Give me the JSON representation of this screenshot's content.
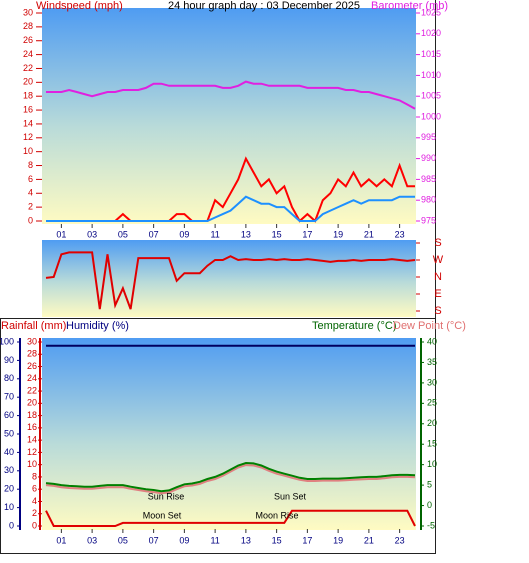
{
  "chart_data": [
    {
      "type": "line",
      "title": "24 hour graph day : 03 December 2025",
      "y_label": "Windspeed (mph)",
      "y2_label": "Barometer (mb)",
      "x": [
        0,
        0.5,
        1,
        1.5,
        2,
        2.5,
        3,
        3.5,
        4,
        4.5,
        5,
        5.5,
        6,
        6.5,
        7,
        7.5,
        8,
        8.5,
        9,
        9.5,
        10,
        10.5,
        11,
        11.5,
        12,
        12.5,
        13,
        13.5,
        14,
        14.5,
        15,
        15.5,
        16,
        16.5,
        17,
        17.5,
        18,
        18.5,
        19,
        19.5,
        20,
        20.5,
        21,
        21.5,
        22,
        22.5,
        23,
        23.5,
        24
      ],
      "xlim": [
        0,
        24
      ],
      "xticks": [
        {
          "value": 1,
          "label": "01"
        },
        {
          "value": 3,
          "label": "03"
        },
        {
          "value": 5,
          "label": "05"
        },
        {
          "value": 7,
          "label": "07"
        },
        {
          "value": 9,
          "label": "09"
        },
        {
          "value": 11,
          "label": "11"
        },
        {
          "value": 13,
          "label": "13"
        },
        {
          "value": 15,
          "label": "15"
        },
        {
          "value": 17,
          "label": "17"
        },
        {
          "value": 19,
          "label": "19"
        },
        {
          "value": 21,
          "label": "21"
        },
        {
          "value": 23,
          "label": "23"
        }
      ],
      "ylim": [
        0,
        30
      ],
      "yticks": [
        0,
        2,
        4,
        6,
        8,
        10,
        12,
        14,
        16,
        18,
        20,
        22,
        24,
        26,
        28,
        30
      ],
      "y2lim": [
        975,
        1025
      ],
      "y2ticks": [
        975,
        980,
        985,
        990,
        995,
        1000,
        1005,
        1010,
        1015,
        1020,
        1025
      ],
      "series": [
        {
          "color": "#ff0000",
          "values": [
            0,
            0,
            0,
            0,
            0,
            0,
            0,
            0,
            0,
            0,
            1,
            0,
            0,
            0,
            0,
            0,
            0,
            1,
            1,
            0,
            0,
            0,
            3,
            2,
            4,
            6,
            9,
            7,
            5,
            6,
            4,
            5,
            2,
            0,
            1,
            0,
            3,
            4,
            6,
            5,
            7,
            5,
            6,
            5,
            6,
            5,
            8,
            5,
            5
          ]
        },
        {
          "color": "#1e90ff",
          "values": [
            0,
            0,
            0,
            0,
            0,
            0,
            0,
            0,
            0,
            0,
            0,
            0,
            0,
            0,
            0,
            0,
            0,
            0,
            0,
            0,
            0,
            0,
            0.5,
            1,
            1.5,
            2.5,
            3.5,
            3,
            2.5,
            2.5,
            2,
            2,
            1,
            0,
            0,
            0,
            1,
            1.5,
            2,
            2.5,
            3,
            2.5,
            3,
            3,
            3,
            3,
            3.5,
            3.5,
            3.5
          ]
        },
        {
          "color": "#e020e0",
          "axis": "y2",
          "values": [
            1006,
            1006,
            1006,
            1006.5,
            1006,
            1005.5,
            1005,
            1005.5,
            1006,
            1006,
            1006.5,
            1006.5,
            1006.5,
            1007,
            1008,
            1008,
            1007.5,
            1007.5,
            1007.5,
            1007.5,
            1007.5,
            1007.5,
            1007.5,
            1007,
            1007,
            1007.5,
            1008.5,
            1008,
            1008,
            1007.5,
            1007.5,
            1007.5,
            1007.5,
            1007.5,
            1007,
            1007,
            1007,
            1007,
            1007,
            1006.5,
            1006.5,
            1006,
            1006,
            1005.5,
            1005,
            1004.5,
            1004,
            1003,
            1002
          ]
        }
      ]
    },
    {
      "type": "line",
      "x": [
        0,
        0.5,
        1,
        1.5,
        2,
        2.5,
        3,
        3.5,
        4,
        4.5,
        5,
        5.5,
        6,
        6.5,
        7,
        7.5,
        8,
        8.5,
        9,
        9.5,
        10,
        10.5,
        11,
        11.5,
        12,
        12.5,
        13,
        13.5,
        14,
        14.5,
        15,
        15.5,
        16,
        16.5,
        17,
        17.5,
        18,
        18.5,
        19,
        19.5,
        20,
        20.5,
        21,
        21.5,
        22,
        22.5,
        23,
        23.5,
        24
      ],
      "xlim": [
        0,
        24
      ],
      "ylim": [
        180,
        -180
      ],
      "yticks": [
        {
          "value": 180,
          "label": "S"
        },
        {
          "value": 90,
          "label": "E"
        },
        {
          "value": 0,
          "label": "N"
        },
        {
          "value": -90,
          "label": "W"
        },
        {
          "value": -180,
          "label": "S"
        }
      ],
      "series": [
        {
          "color": "#e00000",
          "values": [
            5,
            0,
            -120,
            -130,
            -130,
            -130,
            -130,
            170,
            -120,
            150,
            60,
            170,
            -100,
            -100,
            -100,
            -100,
            -100,
            20,
            -20,
            -20,
            -20,
            -60,
            -90,
            -90,
            -110,
            -90,
            -95,
            -90,
            -90,
            -95,
            -90,
            -95,
            -90,
            -90,
            -95,
            -90,
            -85,
            -80,
            -85,
            -85,
            -90,
            -85,
            -90,
            -90,
            -90,
            -95,
            -90,
            -85,
            -90
          ]
        }
      ]
    },
    {
      "type": "line",
      "y_label": "Rainfall (mm)",
      "y3_label": "Humidity (%)",
      "y2_label": "Temperature (°C)",
      "y2_label_b": "Dew Point (°C)",
      "annotations": [
        "Sun Rise",
        "Sun Set",
        "Moon Set",
        "Moon Rise"
      ],
      "x": [
        0,
        0.5,
        1,
        1.5,
        2,
        2.5,
        3,
        3.5,
        4,
        4.5,
        5,
        5.5,
        6,
        6.5,
        7,
        7.5,
        8,
        8.5,
        9,
        9.5,
        10,
        10.5,
        11,
        11.5,
        12,
        12.5,
        13,
        13.5,
        14,
        14.5,
        15,
        15.5,
        16,
        16.5,
        17,
        17.5,
        18,
        18.5,
        19,
        19.5,
        20,
        20.5,
        21,
        21.5,
        22,
        22.5,
        23,
        23.5,
        24
      ],
      "xlim": [
        0,
        24
      ],
      "xticks": [
        {
          "value": 1,
          "label": "01"
        },
        {
          "value": 3,
          "label": "03"
        },
        {
          "value": 5,
          "label": "05"
        },
        {
          "value": 7,
          "label": "07"
        },
        {
          "value": 9,
          "label": "09"
        },
        {
          "value": 11,
          "label": "11"
        },
        {
          "value": 13,
          "label": "13"
        },
        {
          "value": 15,
          "label": "15"
        },
        {
          "value": 17,
          "label": "17"
        },
        {
          "value": 19,
          "label": "19"
        },
        {
          "value": 21,
          "label": "21"
        },
        {
          "value": 23,
          "label": "23"
        }
      ],
      "ylim": [
        0,
        30
      ],
      "yticks": [
        0,
        2,
        4,
        6,
        8,
        10,
        12,
        14,
        16,
        18,
        20,
        22,
        24,
        26,
        28,
        30
      ],
      "y3lim": [
        0,
        100
      ],
      "y3ticks": [
        0,
        10,
        20,
        30,
        40,
        50,
        60,
        70,
        80,
        90,
        100
      ],
      "y2lim": [
        -5,
        40
      ],
      "y2ticks": [
        -5,
        0,
        5,
        10,
        15,
        20,
        25,
        30,
        35,
        40
      ],
      "series": [
        {
          "color": "#000060",
          "axis": "y3",
          "values": [
            98,
            98,
            98,
            98,
            98,
            98,
            98,
            98,
            98,
            98,
            98,
            98,
            98,
            98,
            98,
            98,
            98,
            98,
            98,
            98,
            98,
            98,
            98,
            98,
            98,
            98,
            98,
            98,
            98,
            98,
            98,
            98,
            98,
            98,
            98,
            98,
            98,
            98,
            98,
            98,
            98,
            98,
            98,
            98,
            98,
            98,
            98,
            98,
            98
          ]
        },
        {
          "color": "#e08080",
          "axis": "y2",
          "values": [
            5.0,
            4.8,
            4.5,
            4.3,
            4.2,
            4.1,
            4.1,
            4.3,
            4.5,
            4.5,
            4.5,
            4.1,
            3.8,
            3.5,
            3.3,
            3.0,
            3.2,
            4.0,
            4.7,
            4.9,
            5.3,
            6.0,
            6.5,
            7.3,
            8.3,
            9.3,
            9.9,
            9.8,
            9.3,
            8.5,
            7.8,
            7.3,
            6.8,
            6.3,
            6.0,
            6.0,
            6.1,
            6.1,
            6.1,
            6.2,
            6.3,
            6.4,
            6.5,
            6.5,
            6.7,
            6.9,
            7.0,
            7.0,
            6.9
          ]
        },
        {
          "color": "#008000",
          "axis": "y2",
          "values": [
            5.5,
            5.3,
            5.0,
            4.8,
            4.7,
            4.6,
            4.6,
            4.8,
            5.0,
            5.0,
            5.0,
            4.6,
            4.3,
            4.0,
            3.8,
            3.5,
            3.7,
            4.5,
            5.2,
            5.4,
            5.8,
            6.5,
            7.0,
            7.8,
            8.8,
            9.8,
            10.4,
            10.3,
            9.8,
            9.0,
            8.3,
            7.8,
            7.3,
            6.8,
            6.5,
            6.5,
            6.6,
            6.6,
            6.6,
            6.7,
            6.8,
            6.9,
            7.0,
            7.0,
            7.2,
            7.4,
            7.5,
            7.5,
            7.4
          ]
        },
        {
          "color": "#e00000",
          "values": [
            2.5,
            0,
            0,
            0,
            0,
            0,
            0,
            0,
            0,
            0,
            0.5,
            0.5,
            0.5,
            0.5,
            0.5,
            0.5,
            0.5,
            0.5,
            0.5,
            0.5,
            0.5,
            0.5,
            0.5,
            0.5,
            0.5,
            0.5,
            0.5,
            0.5,
            0.5,
            0.5,
            0.5,
            0.5,
            2.5,
            2.5,
            2.5,
            2.5,
            2.5,
            2.5,
            2.5,
            2.5,
            2.5,
            2.5,
            2.5,
            2.5,
            2.5,
            2.5,
            2.5,
            2.5,
            0
          ]
        }
      ]
    }
  ]
}
